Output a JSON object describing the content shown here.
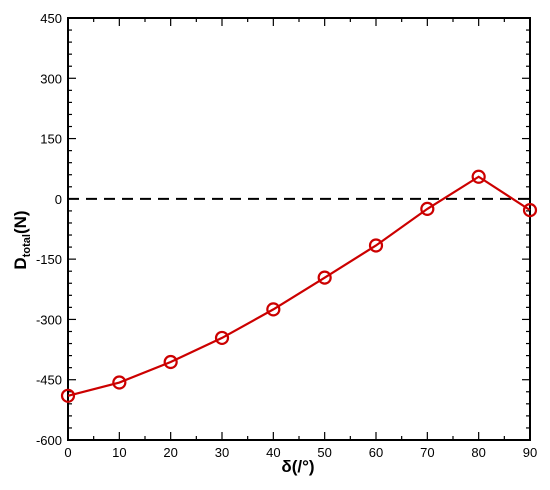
{
  "chart_data": {
    "type": "line",
    "ylabel_main": "D",
    "ylabel_sub": "total",
    "ylabel_suffix": "(N)",
    "xlabel": "δ(/°)",
    "xlim": [
      0,
      90
    ],
    "ylim": [
      -600,
      450
    ],
    "x_ticks": [
      "0",
      "10",
      "20",
      "30",
      "40",
      "50",
      "60",
      "70",
      "80",
      "90"
    ],
    "y_ticks": [
      "450",
      "300",
      "150",
      "0",
      "-150",
      "-300",
      "-450",
      "-600"
    ],
    "reference_line": {
      "y": 0,
      "style": "dashed",
      "color": "#000000"
    },
    "series": [
      {
        "color": "#cc0000",
        "marker": "circle-open",
        "x": [
          0,
          10,
          20,
          30,
          40,
          50,
          60,
          70,
          80,
          90
        ],
        "y": [
          -490,
          -457,
          -406,
          -346,
          -275,
          -196,
          -116,
          -25,
          55,
          -28
        ]
      }
    ]
  }
}
